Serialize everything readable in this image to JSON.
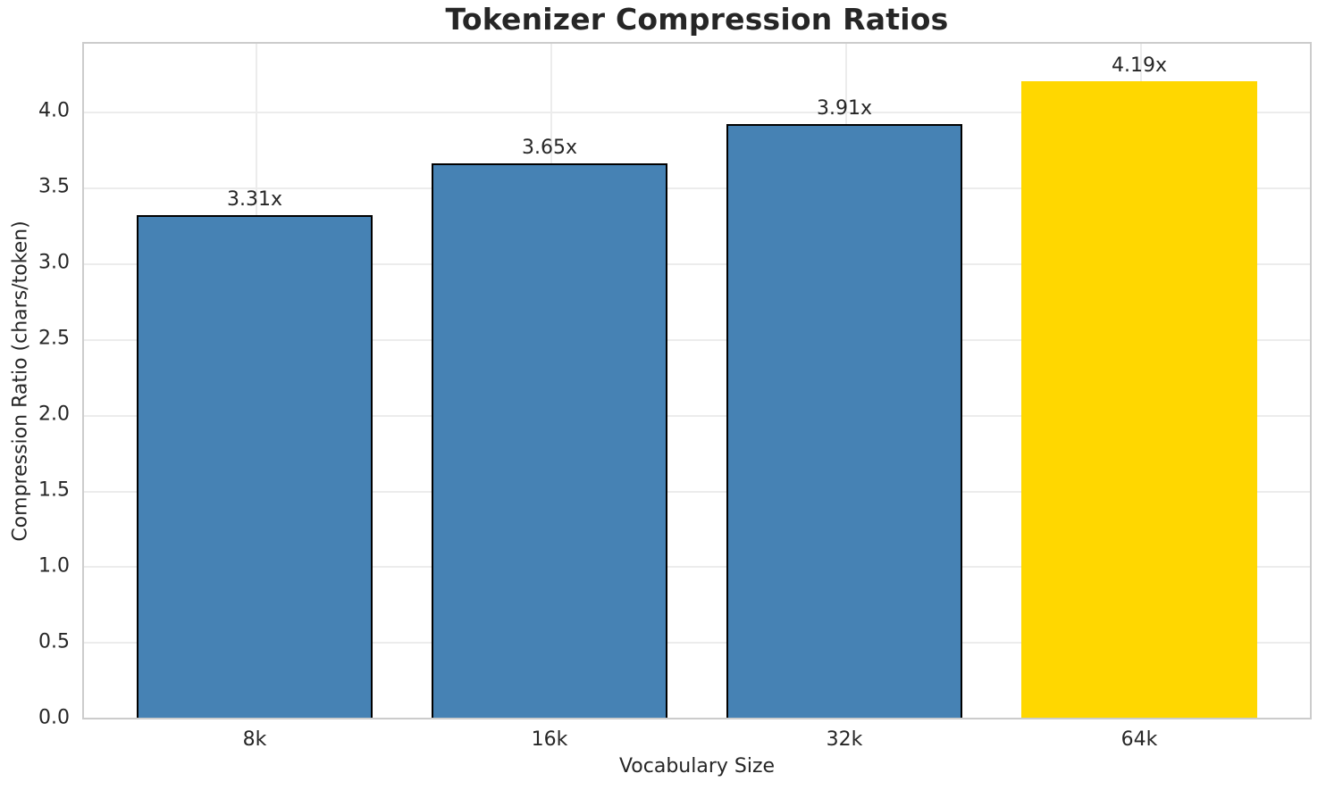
{
  "chart_data": {
    "type": "bar",
    "title": "Tokenizer Compression Ratios",
    "xlabel": "Vocabulary Size",
    "ylabel": "Compression Ratio (chars/token)",
    "categories": [
      "8k",
      "16k",
      "32k",
      "64k"
    ],
    "values": [
      3.31,
      3.65,
      3.91,
      4.19
    ],
    "bar_labels": [
      "3.31x",
      "3.65x",
      "3.91x",
      "4.19x"
    ],
    "highlight_index": 3,
    "ytick_labels": [
      "0.0",
      "0.5",
      "1.0",
      "1.5",
      "2.0",
      "2.5",
      "3.0",
      "3.5",
      "4.0"
    ],
    "ytick_values": [
      0,
      0.5,
      1,
      1.5,
      2,
      2.5,
      3,
      3.5,
      4
    ],
    "ylim": [
      0,
      4.45
    ],
    "grid": true,
    "legend": null,
    "colors": {
      "bar_default": "#4682B4",
      "bar_highlight": "#FFD700",
      "bar_edge": "#000000",
      "grid": "#ececec",
      "spine": "#cccccc",
      "text": "#262626"
    }
  }
}
